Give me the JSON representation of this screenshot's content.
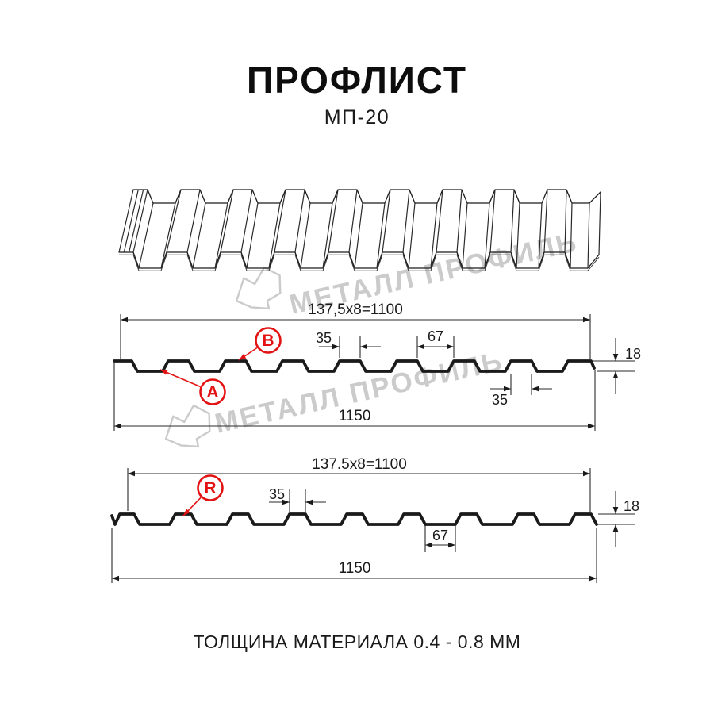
{
  "page": {
    "title": "ПРОФЛИСТ",
    "subtitle": "МП-20",
    "bottom_note": "ТОЛЩИНА МАТЕРИАЛА 0.4 - 0.8 ММ"
  },
  "watermark": {
    "brand_text": "МЕТАЛЛ ПРОФИЛЬ",
    "logo_icon": "metal-profil-mountain-logo"
  },
  "colors": {
    "ink": "#1a1a1a",
    "thin_line": "#2a2a2a",
    "accent_red": "#e31313",
    "watermark_gray": "#cbcbcb"
  },
  "drawing1": {
    "dim_coverage": "137,5x8=1100",
    "dim_rib_top": "35",
    "dim_valley_top": "67",
    "dim_height": "18",
    "dim_rib_bottom": "35",
    "dim_full_width": "1150",
    "label_a": "A",
    "label_b": "B"
  },
  "drawing2": {
    "dim_coverage": "137.5x8=1100",
    "dim_rib_top": "35",
    "dim_flat_bottom": "67",
    "dim_height": "18",
    "dim_full_width": "1150",
    "label_r": "R"
  }
}
